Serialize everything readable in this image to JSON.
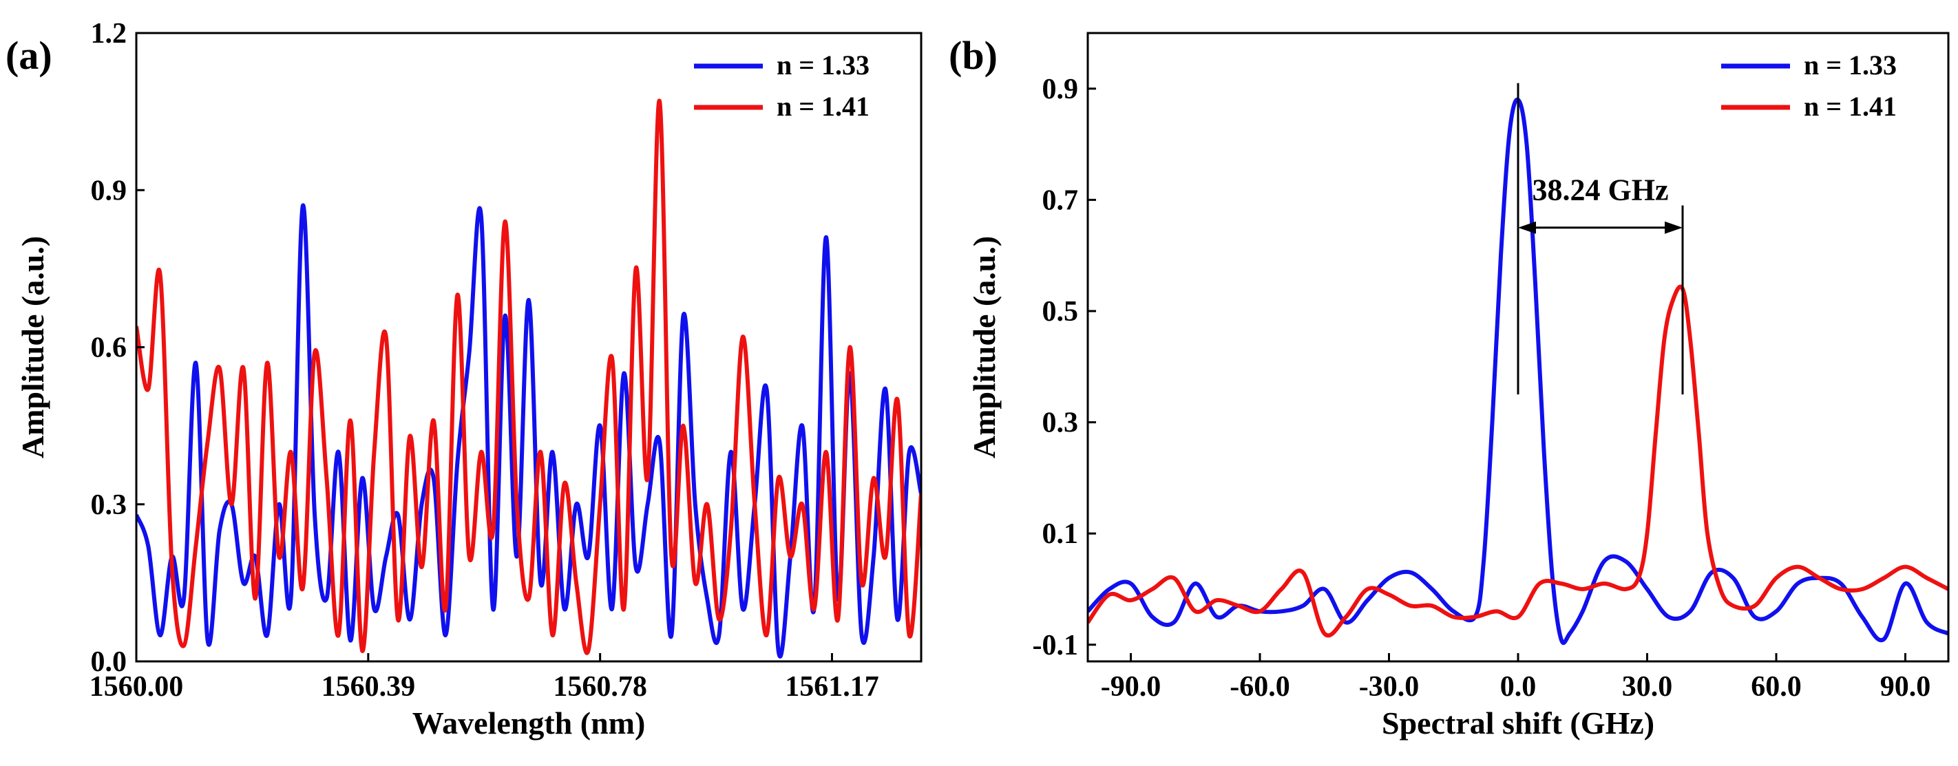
{
  "chart_data": [
    {
      "type": "line",
      "panel_label": "(a)",
      "xlabel": "Wavelength (nm)",
      "ylabel": "Amplitude (a.u.)",
      "xlim": [
        1560.0,
        1561.32
      ],
      "ylim": [
        0.0,
        1.2
      ],
      "xticks": [
        1560.0,
        1560.39,
        1560.78,
        1561.17
      ],
      "xtick_labels": [
        "1560.00",
        "1560.39",
        "1560.78",
        "1561.17"
      ],
      "yticks": [
        0.0,
        0.3,
        0.6,
        0.9,
        1.2
      ],
      "ytick_labels": [
        "0.0",
        "0.3",
        "0.6",
        "0.9",
        "1.2"
      ],
      "legend_position": "top-right",
      "series": [
        {
          "name": "n = 1.33",
          "color": "#1010ee",
          "x": [
            1560.0,
            1560.02,
            1560.04,
            1560.06,
            1560.08,
            1560.1,
            1560.12,
            1560.14,
            1560.16,
            1560.18,
            1560.2,
            1560.22,
            1560.24,
            1560.26,
            1560.28,
            1560.3,
            1560.32,
            1560.34,
            1560.36,
            1560.38,
            1560.4,
            1560.42,
            1560.44,
            1560.46,
            1560.48,
            1560.5,
            1560.52,
            1560.54,
            1560.56,
            1560.58,
            1560.6,
            1560.62,
            1560.64,
            1560.66,
            1560.68,
            1560.7,
            1560.72,
            1560.74,
            1560.76,
            1560.78,
            1560.8,
            1560.82,
            1560.84,
            1560.86,
            1560.88,
            1560.9,
            1560.92,
            1560.94,
            1560.96,
            1560.98,
            1561.0,
            1561.02,
            1561.04,
            1561.06,
            1561.08,
            1561.1,
            1561.12,
            1561.14,
            1561.16,
            1561.18,
            1561.2,
            1561.22,
            1561.24,
            1561.26,
            1561.28,
            1561.3,
            1561.32
          ],
          "y": [
            0.28,
            0.22,
            0.05,
            0.2,
            0.12,
            0.57,
            0.04,
            0.25,
            0.3,
            0.15,
            0.2,
            0.05,
            0.3,
            0.12,
            0.87,
            0.28,
            0.12,
            0.4,
            0.04,
            0.35,
            0.1,
            0.2,
            0.28,
            0.08,
            0.3,
            0.35,
            0.05,
            0.38,
            0.59,
            0.85,
            0.1,
            0.66,
            0.2,
            0.69,
            0.15,
            0.4,
            0.1,
            0.3,
            0.2,
            0.45,
            0.1,
            0.55,
            0.18,
            0.3,
            0.42,
            0.05,
            0.66,
            0.3,
            0.12,
            0.05,
            0.4,
            0.1,
            0.3,
            0.52,
            0.02,
            0.2,
            0.45,
            0.1,
            0.81,
            0.12,
            0.55,
            0.05,
            0.2,
            0.52,
            0.08,
            0.4,
            0.32
          ]
        },
        {
          "name": "n = 1.41",
          "color": "#ee1111",
          "x": [
            1560.0,
            1560.02,
            1560.04,
            1560.06,
            1560.08,
            1560.1,
            1560.12,
            1560.14,
            1560.16,
            1560.18,
            1560.2,
            1560.22,
            1560.24,
            1560.26,
            1560.28,
            1560.3,
            1560.32,
            1560.34,
            1560.36,
            1560.38,
            1560.4,
            1560.42,
            1560.44,
            1560.46,
            1560.48,
            1560.5,
            1560.52,
            1560.54,
            1560.56,
            1560.58,
            1560.6,
            1560.62,
            1560.64,
            1560.66,
            1560.68,
            1560.7,
            1560.72,
            1560.74,
            1560.76,
            1560.78,
            1560.8,
            1560.82,
            1560.84,
            1560.86,
            1560.88,
            1560.9,
            1560.92,
            1560.94,
            1560.96,
            1560.98,
            1561.0,
            1561.02,
            1561.04,
            1561.06,
            1561.08,
            1561.1,
            1561.12,
            1561.14,
            1561.16,
            1561.18,
            1561.2,
            1561.22,
            1561.24,
            1561.26,
            1561.28,
            1561.3,
            1561.32
          ],
          "y": [
            0.64,
            0.52,
            0.74,
            0.18,
            0.03,
            0.22,
            0.42,
            0.56,
            0.3,
            0.56,
            0.12,
            0.57,
            0.2,
            0.4,
            0.14,
            0.59,
            0.35,
            0.05,
            0.46,
            0.02,
            0.4,
            0.62,
            0.08,
            0.43,
            0.18,
            0.46,
            0.1,
            0.7,
            0.2,
            0.4,
            0.25,
            0.84,
            0.3,
            0.12,
            0.4,
            0.05,
            0.34,
            0.15,
            0.02,
            0.3,
            0.58,
            0.1,
            0.75,
            0.35,
            1.07,
            0.2,
            0.45,
            0.15,
            0.3,
            0.08,
            0.25,
            0.62,
            0.3,
            0.05,
            0.35,
            0.2,
            0.3,
            0.1,
            0.4,
            0.08,
            0.6,
            0.15,
            0.35,
            0.2,
            0.5,
            0.05,
            0.32
          ]
        }
      ]
    },
    {
      "type": "line",
      "panel_label": "(b)",
      "xlabel": "Spectral shift (GHz)",
      "ylabel": "Amplitude (a.u.)",
      "xlim": [
        -100,
        100
      ],
      "ylim": [
        -0.13,
        1.0
      ],
      "xticks": [
        -90,
        -60,
        -30,
        0,
        30,
        60,
        90
      ],
      "xtick_labels": [
        "-90.0",
        "-60.0",
        "-30.0",
        "0.0",
        "30.0",
        "60.0",
        "90.0"
      ],
      "yticks": [
        -0.1,
        0.1,
        0.3,
        0.5,
        0.7,
        0.9
      ],
      "ytick_labels": [
        "-0.1",
        "0.1",
        "0.3",
        "0.5",
        "0.7",
        "0.9"
      ],
      "legend_position": "top-right",
      "annotation": {
        "text": "38.24 GHz",
        "x_start": 0,
        "x_end": 38.24,
        "y": 0.65,
        "peak_blue": 0.88,
        "peak_red": 0.54
      },
      "series": [
        {
          "name": "n = 1.33",
          "color": "#1010ee",
          "x": [
            -100,
            -95,
            -90,
            -85,
            -80,
            -75,
            -70,
            -65,
            -60,
            -55,
            -50,
            -45,
            -40,
            -35,
            -30,
            -25,
            -20,
            -15,
            -10,
            -8,
            -6,
            -4,
            -2,
            0,
            2,
            4,
            6,
            8,
            10,
            12,
            15,
            20,
            25,
            30,
            35,
            40,
            45,
            50,
            55,
            60,
            65,
            70,
            75,
            80,
            85,
            90,
            95,
            100
          ],
          "y": [
            -0.04,
            0.0,
            0.01,
            -0.05,
            -0.06,
            0.01,
            -0.05,
            -0.03,
            -0.04,
            -0.04,
            -0.03,
            0.0,
            -0.06,
            -0.02,
            0.02,
            0.03,
            0.0,
            -0.04,
            -0.05,
            0.05,
            0.3,
            0.6,
            0.82,
            0.88,
            0.8,
            0.55,
            0.25,
            0.02,
            -0.09,
            -0.08,
            -0.04,
            0.05,
            0.05,
            0.0,
            -0.05,
            -0.04,
            0.03,
            0.02,
            -0.05,
            -0.04,
            0.01,
            0.02,
            0.01,
            -0.05,
            -0.09,
            0.01,
            -0.06,
            -0.08
          ]
        },
        {
          "name": "n = 1.41",
          "color": "#ee1111",
          "x": [
            -100,
            -95,
            -90,
            -85,
            -80,
            -75,
            -70,
            -65,
            -60,
            -55,
            -50,
            -45,
            -40,
            -35,
            -30,
            -25,
            -20,
            -15,
            -10,
            -5,
            0,
            5,
            10,
            15,
            20,
            25,
            28,
            30,
            32,
            34,
            36,
            38.24,
            40,
            42,
            44,
            47,
            50,
            55,
            60,
            65,
            70,
            75,
            80,
            85,
            90,
            95,
            100
          ],
          "y": [
            -0.06,
            -0.01,
            -0.02,
            0.0,
            0.02,
            -0.04,
            -0.02,
            -0.03,
            -0.04,
            0.0,
            0.03,
            -0.08,
            -0.05,
            0.0,
            -0.01,
            -0.03,
            -0.03,
            -0.05,
            -0.05,
            -0.04,
            -0.05,
            0.01,
            0.01,
            0.0,
            0.01,
            0.0,
            0.02,
            0.1,
            0.28,
            0.45,
            0.52,
            0.54,
            0.45,
            0.28,
            0.1,
            0.0,
            -0.03,
            -0.03,
            0.02,
            0.04,
            0.02,
            0.0,
            0.0,
            0.02,
            0.04,
            0.02,
            0.0
          ]
        }
      ]
    }
  ]
}
